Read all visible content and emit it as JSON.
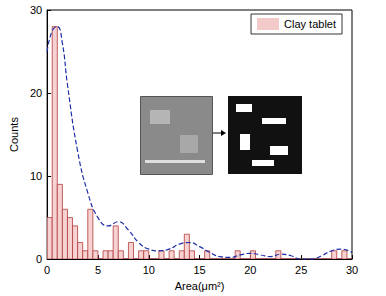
{
  "chart_data": {
    "type": "histogram",
    "x_label": "Area(μm²)",
    "y_label": "Counts",
    "xlim": [
      0,
      30
    ],
    "xticks": [
      0,
      5,
      10,
      15,
      20,
      25,
      30
    ],
    "ylim": [
      0,
      30
    ],
    "yticks": [
      0,
      10,
      20,
      30
    ],
    "legend": "upper right",
    "series": [
      {
        "name": "Clay tablet",
        "type": "histogram",
        "color": "#b23b3b",
        "bins": [
          0,
          0.5,
          1,
          1.5,
          2,
          2.5,
          3,
          3.5,
          4,
          4.5,
          5,
          5.5,
          6,
          6.5,
          7,
          7.5,
          8,
          8.5,
          9,
          9.5,
          10,
          10.5,
          11,
          11.5,
          12,
          12.5,
          13,
          13.5,
          14,
          14.5,
          15,
          15.5,
          16,
          16.5,
          17,
          17.5,
          18,
          18.5,
          19,
          19.5,
          20,
          20.5,
          21,
          21.5,
          22,
          22.5,
          23,
          23.5,
          24,
          24.5,
          25,
          25.5,
          26,
          26.5,
          27,
          27.5,
          28,
          28.5,
          29,
          29.5,
          30
        ],
        "values": [
          5,
          28,
          9,
          6,
          5,
          4,
          2,
          1,
          6,
          1,
          0,
          1,
          1,
          4,
          1,
          0,
          2,
          0,
          1,
          1,
          0,
          0,
          1,
          0,
          1,
          0,
          1,
          3,
          1,
          0,
          0,
          1,
          0,
          0,
          0,
          0,
          0,
          1,
          0,
          0,
          1,
          0,
          0,
          0,
          0,
          1,
          0,
          0,
          0,
          0,
          0,
          0,
          0,
          0,
          0,
          0,
          1,
          0,
          1,
          0
        ]
      },
      {
        "type": "line",
        "color": "#1f2fa8",
        "line_style": "dashed",
        "x": [
          0,
          0.5,
          1,
          1.5,
          2,
          3,
          4,
          5,
          6,
          7,
          8,
          9,
          10,
          11,
          12,
          13,
          14,
          15,
          16,
          17,
          18,
          19,
          20,
          21,
          22,
          23,
          24,
          25,
          26,
          27,
          28,
          29,
          30
        ],
        "values": [
          25,
          27.5,
          28,
          26,
          21,
          13,
          8,
          5,
          4,
          4.5,
          3.5,
          2,
          1.2,
          1,
          1.2,
          1.8,
          2,
          1.5,
          0.8,
          0.3,
          0.2,
          0.5,
          0.7,
          0.5,
          0.3,
          0.6,
          0.4,
          0,
          0,
          0.4,
          1,
          1.2,
          0.8
        ]
      }
    ]
  }
}
